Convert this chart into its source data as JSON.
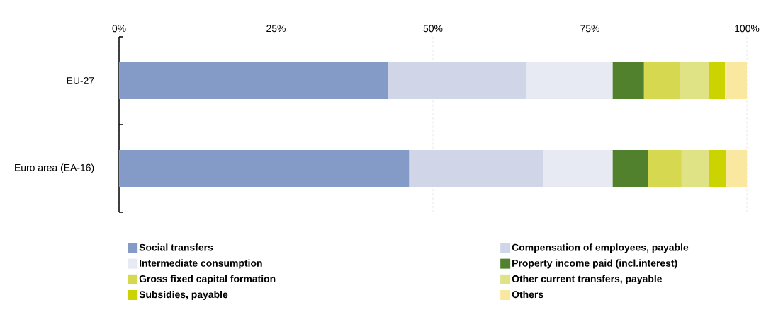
{
  "chart_data": {
    "type": "bar",
    "orientation": "horizontal",
    "stacked": true,
    "categories": [
      "EU-27",
      "Euro area (EA-16)"
    ],
    "series": [
      {
        "name": "Social transfers",
        "color": "#849bc8",
        "values": [
          42.8,
          46.2
        ]
      },
      {
        "name": "Compensation of employees, payable",
        "color": "#d0d5e8",
        "values": [
          22.1,
          21.3
        ]
      },
      {
        "name": "Intermediate consumption",
        "color": "#e7eaf3",
        "values": [
          13.7,
          11.1
        ]
      },
      {
        "name": "Property income paid (incl.interest)",
        "color": "#52812d",
        "values": [
          5.0,
          5.6
        ]
      },
      {
        "name": "Gross fixed capital formation",
        "color": "#d6d94f",
        "values": [
          5.8,
          5.4
        ]
      },
      {
        "name": "Other current transfers, payable",
        "color": "#dfe285",
        "values": [
          4.6,
          4.3
        ]
      },
      {
        "name": "Subsidies, payable",
        "color": "#cbd300",
        "values": [
          2.5,
          2.8
        ]
      },
      {
        "name": "Others",
        "color": "#fae8a1",
        "values": [
          3.5,
          3.3
        ]
      }
    ],
    "xlim": [
      0,
      100
    ],
    "xticks": [
      {
        "value": 0,
        "label": "0%"
      },
      {
        "value": 25,
        "label": "25%"
      },
      {
        "value": 50,
        "label": "50%"
      },
      {
        "value": 75,
        "label": "75%"
      },
      {
        "value": 100,
        "label": "100%"
      }
    ],
    "grid": "x",
    "legend": "bottom"
  }
}
